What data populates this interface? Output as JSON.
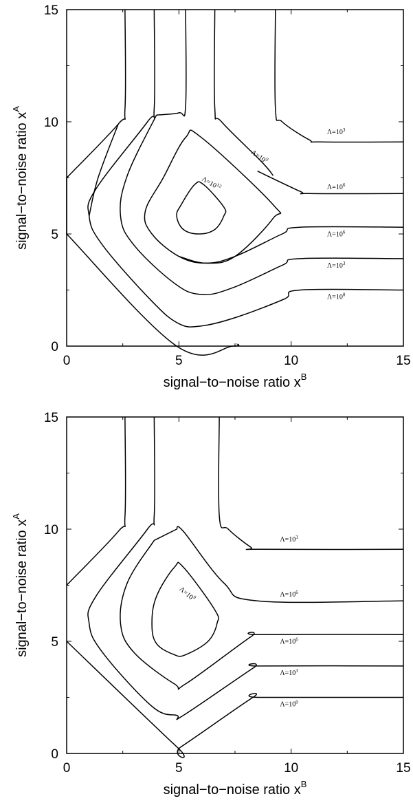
{
  "chart_data": [
    {
      "type": "line",
      "title": "",
      "xlabel": "signal−to−noise ratio x",
      "xlabel_sup": "B",
      "ylabel": "signal−to−noise ratio x",
      "ylabel_sup": "A",
      "xlim": [
        0,
        15
      ],
      "ylim": [
        0,
        15
      ],
      "xticks": [
        0,
        5,
        10,
        15
      ],
      "yticks": [
        0,
        5,
        10,
        15
      ],
      "grid": false,
      "series": [
        {
          "points": [
            [
              0,
              7.5
            ],
            [
              0,
              5.0
            ]
          ]
        },
        {
          "points": [
            [
              2.6,
              15
            ],
            [
              2.6,
              10.6
            ],
            [
              2.3,
              9.9
            ],
            [
              0,
              7.5
            ]
          ]
        },
        {
          "points": [
            [
              0,
              5.0
            ],
            [
              4.9,
              0
            ],
            [
              7.4,
              0
            ],
            [
              7.6,
              0.1
            ]
          ]
        },
        {
          "points": [
            [
              3.9,
              15
            ],
            [
              3.9,
              10.6
            ],
            [
              3.6,
              10.0
            ],
            [
              1.3,
              7.0
            ],
            [
              1.0,
              5.8
            ],
            [
              1.6,
              4.5
            ],
            [
              3.8,
              2.0
            ],
            [
              5.0,
              1.0
            ],
            [
              6.0,
              0.9
            ],
            [
              7.6,
              1.3
            ],
            [
              9.7,
              2.1
            ],
            [
              10.4,
              2.5
            ],
            [
              15,
              2.5
            ]
          ]
        },
        {
          "points": [
            [
              2.3,
              9.9
            ],
            [
              1.4,
              7.5
            ],
            [
              1.0,
              5.8
            ]
          ]
        },
        {
          "points": [
            [
              4.0,
              10.3
            ],
            [
              2.7,
              7.6
            ],
            [
              2.4,
              5.8
            ],
            [
              3.0,
              4.5
            ],
            [
              4.8,
              2.8
            ],
            [
              6.0,
              2.3
            ],
            [
              7.4,
              2.6
            ],
            [
              9.6,
              3.6
            ],
            [
              10.4,
              3.9
            ],
            [
              15,
              3.9
            ]
          ]
        },
        {
          "points": [
            [
              5.3,
              15
            ],
            [
              5.3,
              10.7
            ],
            [
              5.0,
              10.4
            ],
            [
              4.0,
              10.3
            ]
          ]
        },
        {
          "points": [
            [
              6.6,
              15
            ],
            [
              6.6,
              10.6
            ],
            [
              6.9,
              10.0
            ],
            [
              8.7,
              8.2
            ],
            [
              9.2,
              7.6
            ]
          ]
        },
        {
          "points": [
            [
              5.0,
              4.0
            ],
            [
              6.2,
              3.7
            ],
            [
              7.5,
              4.0
            ],
            [
              9.6,
              5.0
            ],
            [
              10.4,
              5.3
            ],
            [
              15,
              5.3
            ]
          ]
        },
        {
          "points": [
            [
              9.3,
              15
            ],
            [
              9.3,
              10.6
            ],
            [
              9.6,
              10.0
            ],
            [
              10.8,
              9.2
            ],
            [
              11.3,
              9.1
            ],
            [
              15,
              9.1
            ]
          ]
        },
        {
          "points": [
            [
              8.5,
              7.8
            ],
            [
              10.4,
              6.9
            ],
            [
              10.8,
              6.8
            ],
            [
              15,
              6.8
            ]
          ]
        }
      ],
      "closed_contours": [
        {
          "points": [
            [
              5.3,
              9.3
            ],
            [
              6.0,
              9.3
            ],
            [
              9.2,
              6.3
            ],
            [
              9.2,
              5.7
            ],
            [
              7.5,
              4.0
            ],
            [
              6.2,
              3.7
            ],
            [
              5.0,
              4.0
            ],
            [
              3.8,
              5.0
            ],
            [
              3.5,
              6.0
            ],
            [
              4.3,
              7.5
            ]
          ]
        },
        {
          "points": [
            [
              5.7,
              7.2
            ],
            [
              6.1,
              7.2
            ],
            [
              7.0,
              6.2
            ],
            [
              7.0,
              5.8
            ],
            [
              6.6,
              5.2
            ],
            [
              5.9,
              5.0
            ],
            [
              5.2,
              5.2
            ],
            [
              4.9,
              5.8
            ],
            [
              5.1,
              6.3
            ]
          ]
        }
      ],
      "annotations": [
        {
          "text": "Λ=10",
          "sup": "3",
          "x": 11.6,
          "y": 9.45
        },
        {
          "text": "Λ=10",
          "sup": "6",
          "x": 11.6,
          "y": 7.0
        },
        {
          "text": "Λ=10",
          "sup": "6",
          "x": 11.6,
          "y": 4.9
        },
        {
          "text": "Λ=10",
          "sup": "3",
          "x": 11.6,
          "y": 3.5
        },
        {
          "text": "Λ=10",
          "sup": "0",
          "x": 11.6,
          "y": 2.1
        },
        {
          "text": "Λ=10",
          "sup": "9",
          "x": 8.2,
          "y": 8.6,
          "rotate": 35
        },
        {
          "text": "Λ=10",
          "sup": "12",
          "x": 6.0,
          "y": 7.4,
          "rotate": 30
        }
      ]
    },
    {
      "type": "line",
      "title": "",
      "xlabel": "signal−to−noise ratio x",
      "xlabel_sup": "B",
      "ylabel": "signal−to−noise ratio x",
      "ylabel_sup": "A",
      "xlim": [
        0,
        15
      ],
      "ylim": [
        0,
        15
      ],
      "xticks": [
        0,
        5,
        10,
        15
      ],
      "yticks": [
        0,
        5,
        10,
        15
      ],
      "grid": false,
      "series": [
        {
          "points": [
            [
              2.6,
              15
            ],
            [
              2.6,
              10.6
            ],
            [
              2.3,
              9.9
            ],
            [
              0,
              7.5
            ]
          ]
        },
        {
          "points": [
            [
              0,
              5.0
            ],
            [
              4.9,
              0.3
            ],
            [
              5.1,
              0.3
            ],
            [
              8.3,
              2.5
            ],
            [
              8.6,
              2.5
            ],
            [
              15,
              2.5
            ]
          ]
        },
        {
          "points": [
            [
              3.9,
              15
            ],
            [
              3.9,
              10.6
            ],
            [
              3.6,
              10.0
            ],
            [
              1.3,
              7.0
            ],
            [
              1.0,
              5.8
            ],
            [
              1.6,
              4.5
            ],
            [
              3.8,
              2.1
            ],
            [
              4.9,
              1.7
            ],
            [
              5.2,
              1.7
            ],
            [
              8.3,
              3.8
            ],
            [
              8.6,
              3.9
            ],
            [
              15,
              3.9
            ]
          ]
        },
        {
          "points": [
            [
              6.8,
              15
            ],
            [
              6.8,
              10.6
            ],
            [
              7.2,
              10.0
            ],
            [
              8.2,
              9.2
            ],
            [
              8.6,
              9.1
            ],
            [
              15,
              9.1
            ]
          ]
        },
        {
          "points": [
            [
              4.9,
              10.0
            ],
            [
              5.2,
              9.9
            ],
            [
              7.0,
              7.6
            ],
            [
              8.5,
              6.8
            ],
            [
              15,
              6.8
            ]
          ]
        },
        {
          "points": [
            [
              3.9,
              9.5
            ],
            [
              2.7,
              7.6
            ],
            [
              2.4,
              5.8
            ],
            [
              3.0,
              4.5
            ],
            [
              4.8,
              3.1
            ],
            [
              5.3,
              3.1
            ],
            [
              8.2,
              5.2
            ],
            [
              8.6,
              5.3
            ],
            [
              15,
              5.3
            ]
          ]
        },
        {
          "points": [
            [
              3.9,
              9.5
            ],
            [
              4.9,
              10.0
            ]
          ]
        }
      ],
      "closed_contours": [
        {
          "points": [
            [
              4.8,
              8.3
            ],
            [
              5.2,
              8.3
            ],
            [
              6.6,
              6.4
            ],
            [
              6.7,
              5.8
            ],
            [
              6.3,
              5.0
            ],
            [
              5.3,
              4.4
            ],
            [
              4.8,
              4.4
            ],
            [
              4.0,
              4.9
            ],
            [
              3.8,
              5.8
            ],
            [
              4.0,
              7.0
            ]
          ]
        }
      ],
      "annotations": [
        {
          "text": "Λ=10",
          "sup": "3",
          "x": 9.5,
          "y": 9.45
        },
        {
          "text": "Λ=10",
          "sup": "6",
          "x": 9.5,
          "y": 7.0
        },
        {
          "text": "Λ=10",
          "sup": "6",
          "x": 9.5,
          "y": 4.9
        },
        {
          "text": "Λ=10",
          "sup": "3",
          "x": 9.5,
          "y": 3.5
        },
        {
          "text": "Λ=10",
          "sup": "0",
          "x": 9.5,
          "y": 2.1
        },
        {
          "text": "Λ=10",
          "sup": "9",
          "x": 5.0,
          "y": 7.3,
          "rotate": 40
        }
      ]
    }
  ]
}
